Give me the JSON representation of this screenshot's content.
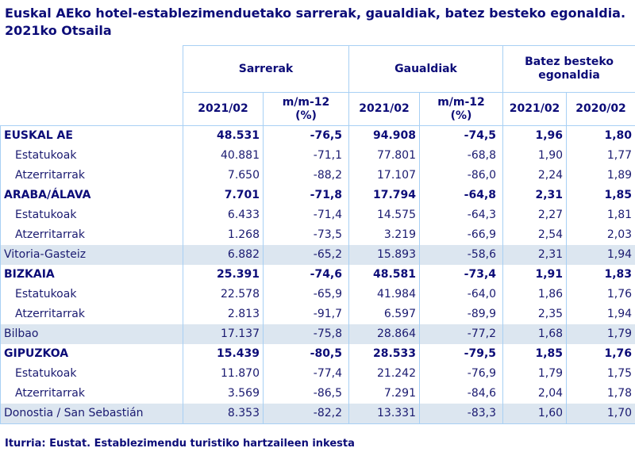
{
  "title": "Euskal AEko hotel-establezimenduetako sarrerak, gaualdiak, batez besteko egonaldia.  2021ko Otsaila",
  "headers": {
    "groups": [
      "Sarrerak",
      "Gaualdiak",
      "Batez besteko egonaldia"
    ],
    "sub": [
      "2021/02",
      "m/m-12 (%)",
      "2021/02",
      "m/m-12 (%)",
      "2021/02",
      "2020/02"
    ]
  },
  "colors": {
    "text": "#0c0c78",
    "border": "#a8d0f4",
    "highlight_row": "#dce6f0"
  },
  "rows": [
    {
      "type": "bold",
      "label": "EUSKAL AE",
      "values": [
        "48.531",
        "-76,5",
        "94.908",
        "-74,5",
        "1,96",
        "1,80"
      ]
    },
    {
      "type": "sub",
      "label": "Estatukoak",
      "values": [
        "40.881",
        "-71,1",
        "77.801",
        "-68,8",
        "1,90",
        "1,77"
      ]
    },
    {
      "type": "sub",
      "label": "Atzerritarrak",
      "values": [
        "7.650",
        "-88,2",
        "17.107",
        "-86,0",
        "2,24",
        "1,89"
      ]
    },
    {
      "type": "bold",
      "label": "ARABA/ÁLAVA",
      "values": [
        "7.701",
        "-71,8",
        "17.794",
        "-64,8",
        "2,31",
        "1,85"
      ]
    },
    {
      "type": "sub",
      "label": "Estatukoak",
      "values": [
        "6.433",
        "-71,4",
        "14.575",
        "-64,3",
        "2,27",
        "1,81"
      ]
    },
    {
      "type": "sub",
      "label": "Atzerritarrak",
      "values": [
        "1.268",
        "-73,5",
        "3.219",
        "-66,9",
        "2,54",
        "2,03"
      ]
    },
    {
      "type": "city",
      "label": "Vitoria-Gasteiz",
      "values": [
        "6.882",
        "-65,2",
        "15.893",
        "-58,6",
        "2,31",
        "1,94"
      ]
    },
    {
      "type": "bold",
      "label": "BIZKAIA",
      "values": [
        "25.391",
        "-74,6",
        "48.581",
        "-73,4",
        "1,91",
        "1,83"
      ]
    },
    {
      "type": "sub",
      "label": "Estatukoak",
      "values": [
        "22.578",
        "-65,9",
        "41.984",
        "-64,0",
        "1,86",
        "1,76"
      ]
    },
    {
      "type": "sub",
      "label": "Atzerritarrak",
      "values": [
        "2.813",
        "-91,7",
        "6.597",
        "-89,9",
        "2,35",
        "1,94"
      ]
    },
    {
      "type": "city",
      "label": "Bilbao",
      "values": [
        "17.137",
        "-75,8",
        "28.864",
        "-77,2",
        "1,68",
        "1,79"
      ]
    },
    {
      "type": "bold",
      "label": "GIPUZKOA",
      "values": [
        "15.439",
        "-80,5",
        "28.533",
        "-79,5",
        "1,85",
        "1,76"
      ]
    },
    {
      "type": "sub",
      "label": "Estatukoak",
      "values": [
        "11.870",
        "-77,4",
        "21.242",
        "-76,9",
        "1,79",
        "1,75"
      ]
    },
    {
      "type": "sub",
      "label": "Atzerritarrak",
      "values": [
        "3.569",
        "-86,5",
        "7.291",
        "-84,6",
        "2,04",
        "1,78"
      ]
    },
    {
      "type": "city",
      "label": "Donostia / San Sebastián",
      "values": [
        "8.353",
        "-82,2",
        "13.331",
        "-83,3",
        "1,60",
        "1,70"
      ]
    }
  ],
  "source": "Iturria: Eustat. Establezimendu turistiko hartzaileen inkesta"
}
